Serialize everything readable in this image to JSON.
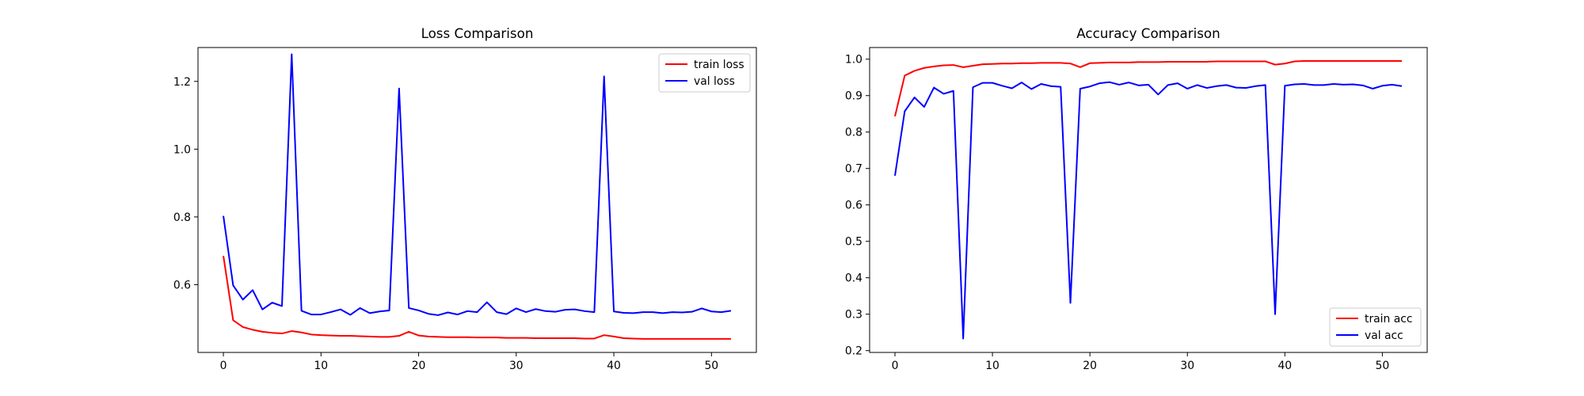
{
  "chart_data": [
    {
      "type": "line",
      "title": "Loss Comparison",
      "xlabel": "",
      "ylabel": "",
      "xlim": [
        -2.6,
        54.6
      ],
      "ylim": [
        0.4,
        1.3
      ],
      "xticks": [
        0,
        10,
        20,
        30,
        40,
        50
      ],
      "yticks": [
        0.6,
        0.8,
        1.0,
        1.2
      ],
      "ytick_labels": [
        "0.6",
        "0.8",
        "1.0",
        "1.2"
      ],
      "grid": false,
      "legend_position": "upper right",
      "series": [
        {
          "name": "train loss",
          "color": "#ff0000",
          "values": [
            0.685,
            0.495,
            0.475,
            0.467,
            0.461,
            0.458,
            0.456,
            0.463,
            0.459,
            0.453,
            0.451,
            0.45,
            0.449,
            0.449,
            0.448,
            0.447,
            0.446,
            0.446,
            0.449,
            0.461,
            0.45,
            0.447,
            0.446,
            0.445,
            0.445,
            0.445,
            0.444,
            0.444,
            0.444,
            0.443,
            0.443,
            0.443,
            0.442,
            0.442,
            0.442,
            0.442,
            0.442,
            0.441,
            0.441,
            0.451,
            0.447,
            0.442,
            0.441,
            0.44,
            0.44,
            0.44,
            0.44,
            0.44,
            0.44,
            0.44,
            0.44,
            0.44,
            0.44
          ]
        },
        {
          "name": "val loss",
          "color": "#0000ff",
          "values": [
            0.803,
            0.598,
            0.556,
            0.584,
            0.527,
            0.547,
            0.537,
            1.28,
            0.523,
            0.512,
            0.512,
            0.519,
            0.527,
            0.511,
            0.531,
            0.516,
            0.521,
            0.524,
            1.179,
            0.531,
            0.524,
            0.514,
            0.51,
            0.518,
            0.512,
            0.522,
            0.519,
            0.548,
            0.519,
            0.513,
            0.53,
            0.519,
            0.528,
            0.522,
            0.52,
            0.526,
            0.527,
            0.522,
            0.519,
            1.215,
            0.521,
            0.517,
            0.516,
            0.519,
            0.519,
            0.516,
            0.519,
            0.518,
            0.52,
            0.53,
            0.521,
            0.519,
            0.523
          ]
        }
      ]
    },
    {
      "type": "line",
      "title": "Accuracy Comparison",
      "xlabel": "",
      "ylabel": "",
      "xlim": [
        -2.6,
        54.6
      ],
      "ylim": [
        0.195,
        1.032
      ],
      "xticks": [
        0,
        10,
        20,
        30,
        40,
        50
      ],
      "yticks": [
        0.2,
        0.3,
        0.4,
        0.5,
        0.6,
        0.7,
        0.8,
        0.9,
        1.0
      ],
      "ytick_labels": [
        "0.2",
        "0.3",
        "0.4",
        "0.5",
        "0.6",
        "0.7",
        "0.8",
        "0.9",
        "1.0"
      ],
      "grid": false,
      "legend_position": "lower right",
      "series": [
        {
          "name": "train acc",
          "color": "#ff0000",
          "values": [
            0.843,
            0.955,
            0.968,
            0.976,
            0.98,
            0.983,
            0.984,
            0.978,
            0.982,
            0.986,
            0.987,
            0.988,
            0.988,
            0.989,
            0.989,
            0.99,
            0.99,
            0.99,
            0.988,
            0.978,
            0.989,
            0.99,
            0.991,
            0.991,
            0.991,
            0.992,
            0.992,
            0.992,
            0.993,
            0.993,
            0.993,
            0.993,
            0.993,
            0.994,
            0.994,
            0.994,
            0.994,
            0.994,
            0.994,
            0.985,
            0.988,
            0.994,
            0.995,
            0.995,
            0.995,
            0.995,
            0.995,
            0.995,
            0.995,
            0.995,
            0.995,
            0.995,
            0.995
          ]
        },
        {
          "name": "val acc",
          "color": "#0000ff",
          "values": [
            0.68,
            0.857,
            0.895,
            0.869,
            0.922,
            0.905,
            0.913,
            0.233,
            0.923,
            0.935,
            0.935,
            0.927,
            0.92,
            0.936,
            0.918,
            0.932,
            0.926,
            0.924,
            0.331,
            0.919,
            0.925,
            0.934,
            0.937,
            0.93,
            0.936,
            0.928,
            0.93,
            0.903,
            0.929,
            0.934,
            0.919,
            0.929,
            0.921,
            0.926,
            0.929,
            0.922,
            0.921,
            0.926,
            0.929,
            0.3,
            0.927,
            0.931,
            0.932,
            0.929,
            0.929,
            0.932,
            0.93,
            0.931,
            0.928,
            0.919,
            0.927,
            0.93,
            0.926
          ]
        }
      ]
    }
  ]
}
